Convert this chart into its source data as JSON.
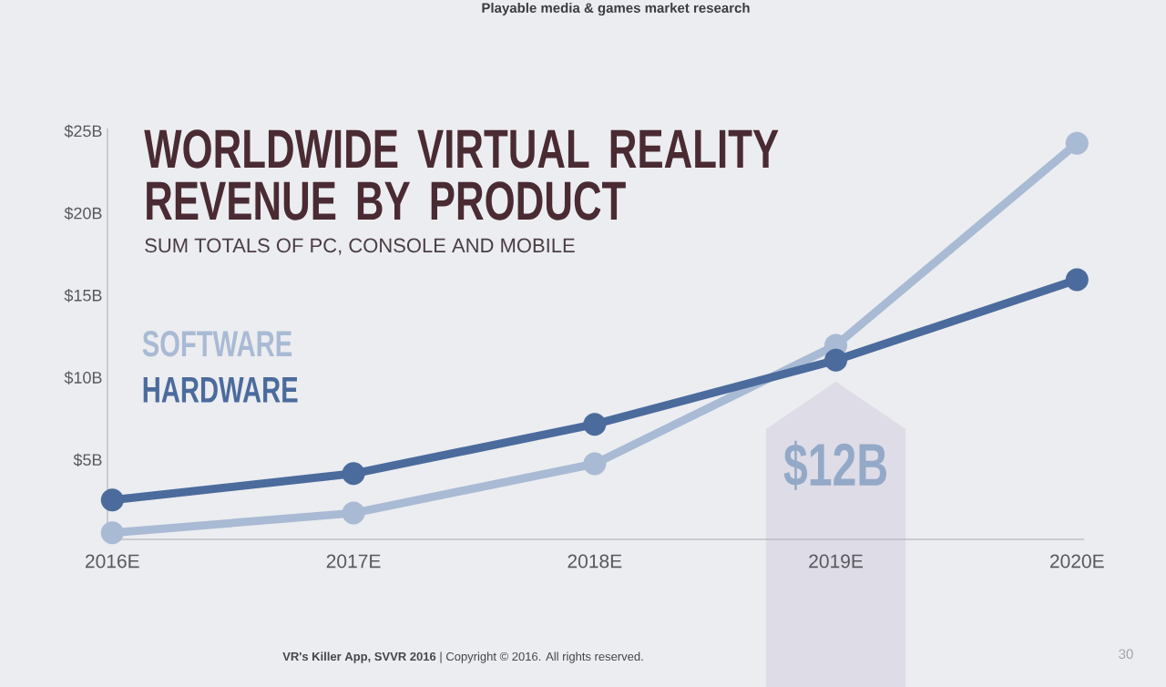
{
  "chart_data": {
    "type": "line",
    "title": "WORLDWIDE VIRTUAL REALITY REVENUE BY PRODUCT",
    "subtitle": "SUM TOTALS OF PC, CONSOLE AND MOBILE",
    "categories": [
      "2016E",
      "2017E",
      "2018E",
      "2019E",
      "2020E"
    ],
    "series": [
      {
        "name": "SOFTWARE",
        "color": "#a9bad4",
        "values": [
          0.4,
          1.6,
          4.6,
          11.8,
          24.1
        ]
      },
      {
        "name": "HARDWARE",
        "color": "#4b6b9d",
        "values": [
          2.4,
          4.0,
          7.0,
          10.9,
          15.8
        ]
      }
    ],
    "ylim": [
      0,
      25
    ],
    "yticks": [
      {
        "value": 5,
        "label": "$5B"
      },
      {
        "value": 10,
        "label": "$10B"
      },
      {
        "value": 15,
        "label": "$15B"
      },
      {
        "value": 20,
        "label": "$20B"
      },
      {
        "value": 25,
        "label": "$25B"
      }
    ],
    "legend": "left",
    "marker": "circle",
    "line_style": "solid",
    "annotations": [
      {
        "text": "$12B",
        "x": "2019E",
        "y": 12
      },
      "Playable media & games market research",
      "**VR's Killer App, SVVR 2016** | Copyright © 2016. All rights reserved.",
      "30"
    ]
  }
}
